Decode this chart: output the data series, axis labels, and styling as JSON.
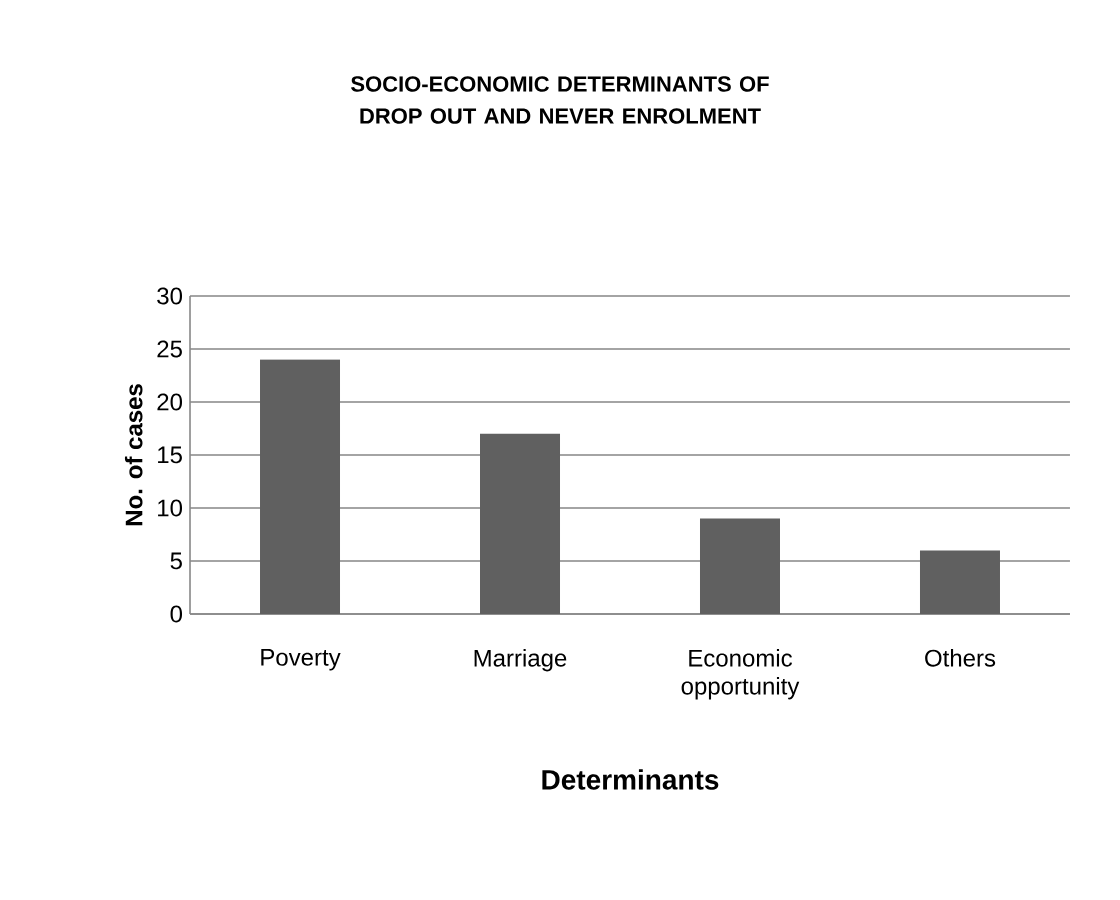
{
  "chart_data": {
    "type": "bar",
    "title": "SOCIO-ECONOMIC DETERMINANTS OF DROP OUT AND NEVER ENROLMENT",
    "xlabel": "Determinants",
    "ylabel": "No. of cases",
    "categories": [
      "Poverty",
      "Marriage",
      "Economic opportunity",
      "Others"
    ],
    "values": [
      24,
      17,
      9,
      6
    ],
    "color": "#606060",
    "ylim": [
      0,
      30
    ],
    "yticks": [
      0,
      5,
      10,
      15,
      20,
      25,
      30
    ],
    "grid": "y"
  }
}
